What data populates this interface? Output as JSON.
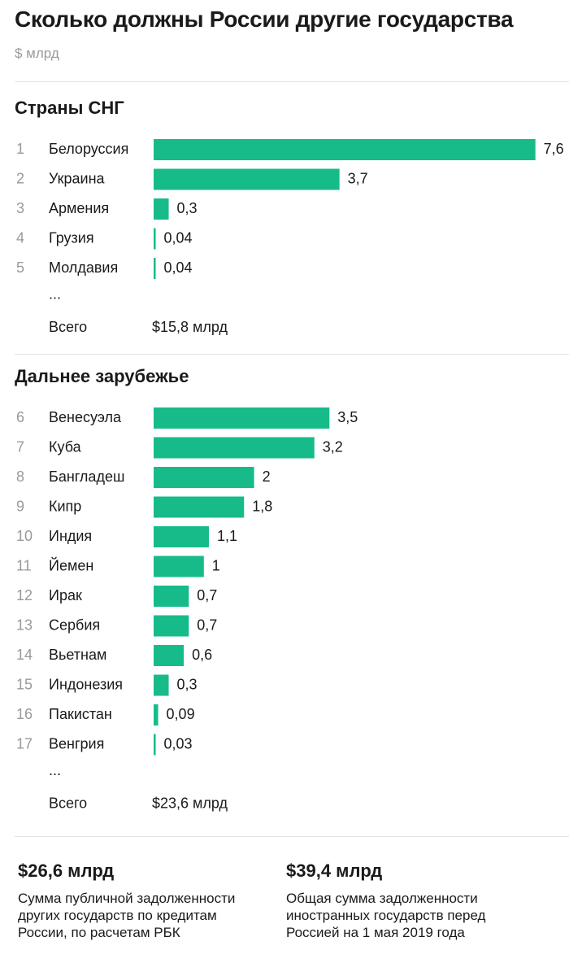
{
  "title": "Сколько должны России другие государства",
  "unit": "$ млрд",
  "colors": {
    "bar": "#17bb8a",
    "text": "#1a1a1a",
    "muted": "#9a9a9a",
    "rule": "#e3e3e3"
  },
  "chart_data": [
    {
      "type": "bar",
      "title": "Страны СНГ",
      "ranks": [
        "1",
        "2",
        "3",
        "4",
        "5"
      ],
      "categories": [
        "Белоруссия",
        "Украина",
        "Армения",
        "Грузия",
        "Молдавия"
      ],
      "values": [
        7.6,
        3.7,
        0.3,
        0.04,
        0.04
      ],
      "value_labels": [
        "7,6",
        "3,7",
        "0,3",
        "0,04",
        "0,04"
      ],
      "ellipsis": "...",
      "total_label": "Всего",
      "total_value": "$15,8 млрд"
    },
    {
      "type": "bar",
      "title": "Дальнее зарубежье",
      "ranks": [
        "6",
        "7",
        "8",
        "9",
        "10",
        "11",
        "12",
        "13",
        "14",
        "15",
        "16",
        "17"
      ],
      "categories": [
        "Венесуэла",
        "Куба",
        "Бангладеш",
        "Кипр",
        "Индия",
        "Йемен",
        "Ирак",
        "Сербия",
        "Вьетнам",
        "Индонезия",
        "Пакистан",
        "Венгрия"
      ],
      "values": [
        3.5,
        3.2,
        2,
        1.8,
        1.1,
        1,
        0.7,
        0.7,
        0.6,
        0.3,
        0.09,
        0.03
      ],
      "value_labels": [
        "3,5",
        "3,2",
        "2",
        "1,8",
        "1,1",
        "1",
        "0,7",
        "0,7",
        "0,6",
        "0,3",
        "0,09",
        "0,03"
      ],
      "ellipsis": "...",
      "total_label": "Всего",
      "total_value": "$23,6 млрд"
    }
  ],
  "footer": {
    "left": {
      "value": "$26,6 млрд",
      "description": "Сумма публичной задолженности других государств по кредитам России, по расчетам РБК"
    },
    "right": {
      "value": "$39,4 млрд",
      "description": "Общая сумма задолженности иностранных государств перед Россией на 1 мая 2019 года"
    }
  }
}
